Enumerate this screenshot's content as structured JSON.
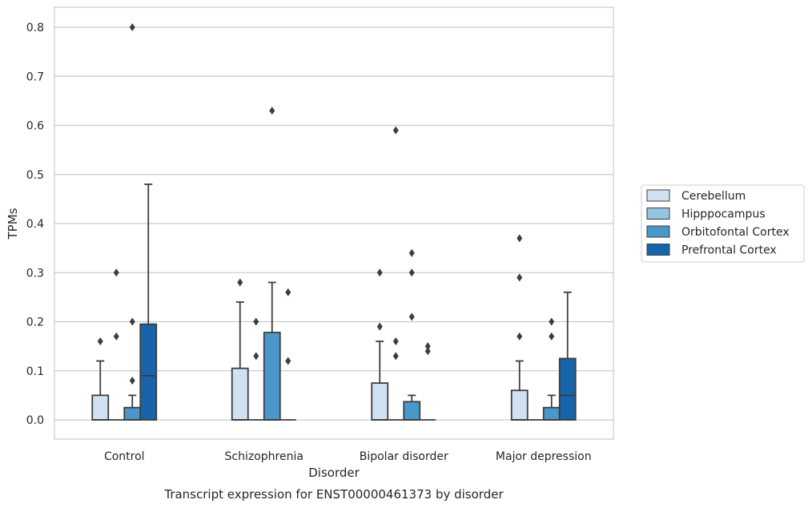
{
  "caption": "Transcript expression for ENST00000461373 by disorder",
  "chart_data": {
    "type": "box",
    "xlabel": "Disorder",
    "ylabel": "TPMs",
    "ylim": [
      -0.04,
      0.84
    ],
    "yticks": [
      0.0,
      0.1,
      0.2,
      0.3,
      0.4,
      0.5,
      0.6,
      0.7,
      0.8
    ],
    "ytick_labels": [
      "0.0",
      "0.1",
      "0.2",
      "0.3",
      "0.4",
      "0.5",
      "0.6",
      "0.7",
      "0.8"
    ],
    "grid": "horizontal",
    "legend_position": "right",
    "categories": [
      "Control",
      "Schizophrenia",
      "Bipolar disorder",
      "Major depression"
    ],
    "series": [
      {
        "name": "Cerebellum",
        "color": "#d0e1f2",
        "boxes": [
          {
            "q1": 0.0,
            "median": 0.0,
            "q3": 0.05,
            "whisker_low": 0.0,
            "whisker_high": 0.12,
            "outliers": [
              0.16
            ]
          },
          {
            "q1": 0.0,
            "median": 0.0,
            "q3": 0.105,
            "whisker_low": 0.0,
            "whisker_high": 0.24,
            "outliers": [
              0.28
            ]
          },
          {
            "q1": 0.0,
            "median": 0.0,
            "q3": 0.075,
            "whisker_low": 0.0,
            "whisker_high": 0.16,
            "outliers": [
              0.19,
              0.3
            ]
          },
          {
            "q1": 0.0,
            "median": 0.0,
            "q3": 0.06,
            "whisker_low": 0.0,
            "whisker_high": 0.12,
            "outliers": [
              0.17,
              0.29,
              0.37
            ]
          }
        ]
      },
      {
        "name": "Hipppocampus",
        "color": "#94c4df",
        "boxes": [
          {
            "q1": 0.0,
            "median": 0.0,
            "q3": 0.0,
            "whisker_low": 0.0,
            "whisker_high": 0.0,
            "outliers": [
              0.17,
              0.3
            ]
          },
          {
            "q1": 0.0,
            "median": 0.0,
            "q3": 0.0,
            "whisker_low": 0.0,
            "whisker_high": 0.0,
            "outliers": [
              0.13,
              0.2
            ]
          },
          {
            "q1": 0.0,
            "median": 0.0,
            "q3": 0.0,
            "whisker_low": 0.0,
            "whisker_high": 0.0,
            "outliers": [
              0.13,
              0.16,
              0.59
            ]
          },
          {
            "q1": 0.0,
            "median": 0.0,
            "q3": 0.0,
            "whisker_low": 0.0,
            "whisker_high": 0.0,
            "outliers": []
          }
        ]
      },
      {
        "name": "Orbitofontal Cortex",
        "color": "#4a98c9",
        "boxes": [
          {
            "q1": 0.0,
            "median": 0.0,
            "q3": 0.025,
            "whisker_low": 0.0,
            "whisker_high": 0.05,
            "outliers": [
              0.08,
              0.2,
              0.8
            ]
          },
          {
            "q1": 0.0,
            "median": 0.0,
            "q3": 0.178,
            "whisker_low": 0.0,
            "whisker_high": 0.28,
            "outliers": [
              0.63
            ]
          },
          {
            "q1": 0.0,
            "median": 0.0,
            "q3": 0.037,
            "whisker_low": 0.0,
            "whisker_high": 0.05,
            "outliers": [
              0.21,
              0.3,
              0.34
            ]
          },
          {
            "q1": 0.0,
            "median": 0.0,
            "q3": 0.025,
            "whisker_low": 0.0,
            "whisker_high": 0.05,
            "outliers": [
              0.17,
              0.2
            ]
          }
        ]
      },
      {
        "name": "Prefrontal Cortex",
        "color": "#1764ab",
        "boxes": [
          {
            "q1": 0.0,
            "median": 0.09,
            "q3": 0.195,
            "whisker_low": 0.0,
            "whisker_high": 0.48,
            "outliers": []
          },
          {
            "q1": 0.0,
            "median": 0.0,
            "q3": 0.0,
            "whisker_low": 0.0,
            "whisker_high": 0.0,
            "outliers": [
              0.12,
              0.26
            ]
          },
          {
            "q1": 0.0,
            "median": 0.0,
            "q3": 0.0,
            "whisker_low": 0.0,
            "whisker_high": 0.0,
            "outliers": [
              0.14,
              0.15
            ]
          },
          {
            "q1": 0.0,
            "median": 0.05,
            "q3": 0.125,
            "whisker_low": 0.0,
            "whisker_high": 0.26,
            "outliers": []
          }
        ]
      }
    ]
  }
}
